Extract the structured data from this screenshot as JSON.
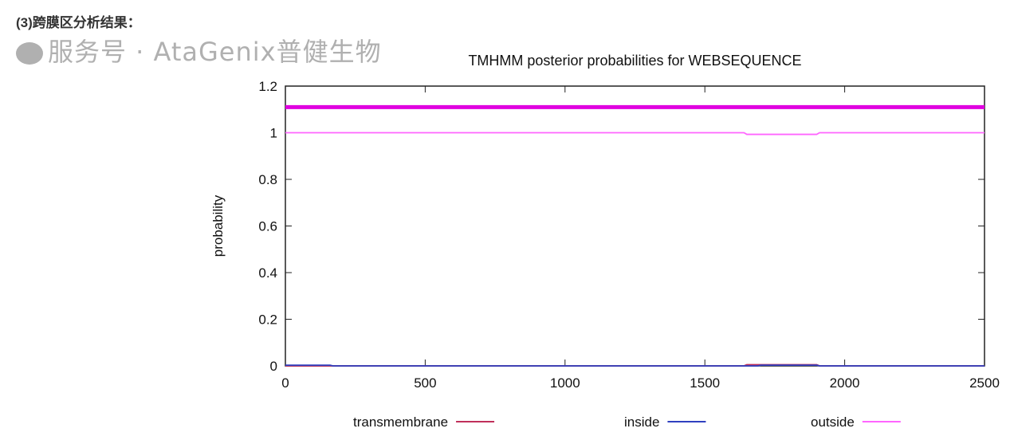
{
  "heading": "(3)跨膜区分析结果：",
  "watermark": "服务号 · AtaGenix普健生物",
  "chart_data": {
    "type": "line",
    "title": "TMHMM posterior probabilities for WEBSEQUENCE",
    "xlabel": "",
    "ylabel": "probability",
    "xlim": [
      0,
      2500
    ],
    "ylim": [
      0,
      1.2
    ],
    "xticks": [
      "0",
      "500",
      "1000",
      "1500",
      "2000",
      "2500"
    ],
    "yticks": [
      "0",
      "0.2",
      "0.4",
      "0.6",
      "0.8",
      "1",
      "1.2"
    ],
    "grid": false,
    "legend_position": "bottom",
    "series": [
      {
        "name": "transmembrane",
        "color": "#c0305a",
        "x": [
          0,
          1640,
          1650,
          1900,
          1910,
          2500
        ],
        "y": [
          0,
          0,
          0.005,
          0.005,
          0,
          0
        ]
      },
      {
        "name": "inside",
        "color": "#3040c0",
        "x": [
          0,
          160,
          170,
          1690,
          1700,
          1900,
          1910,
          2500
        ],
        "y": [
          0.003,
          0.003,
          0,
          0,
          0.003,
          0.003,
          0,
          0
        ]
      },
      {
        "name": "outside",
        "color": "#ff66ff",
        "x": [
          0,
          1640,
          1650,
          1900,
          1910,
          2500
        ],
        "y": [
          1,
          1,
          0.993,
          0.993,
          1,
          1
        ]
      }
    ],
    "annotations": [
      {
        "type": "horizontal-band",
        "y": 1.11,
        "color": "#e000e0"
      }
    ]
  }
}
